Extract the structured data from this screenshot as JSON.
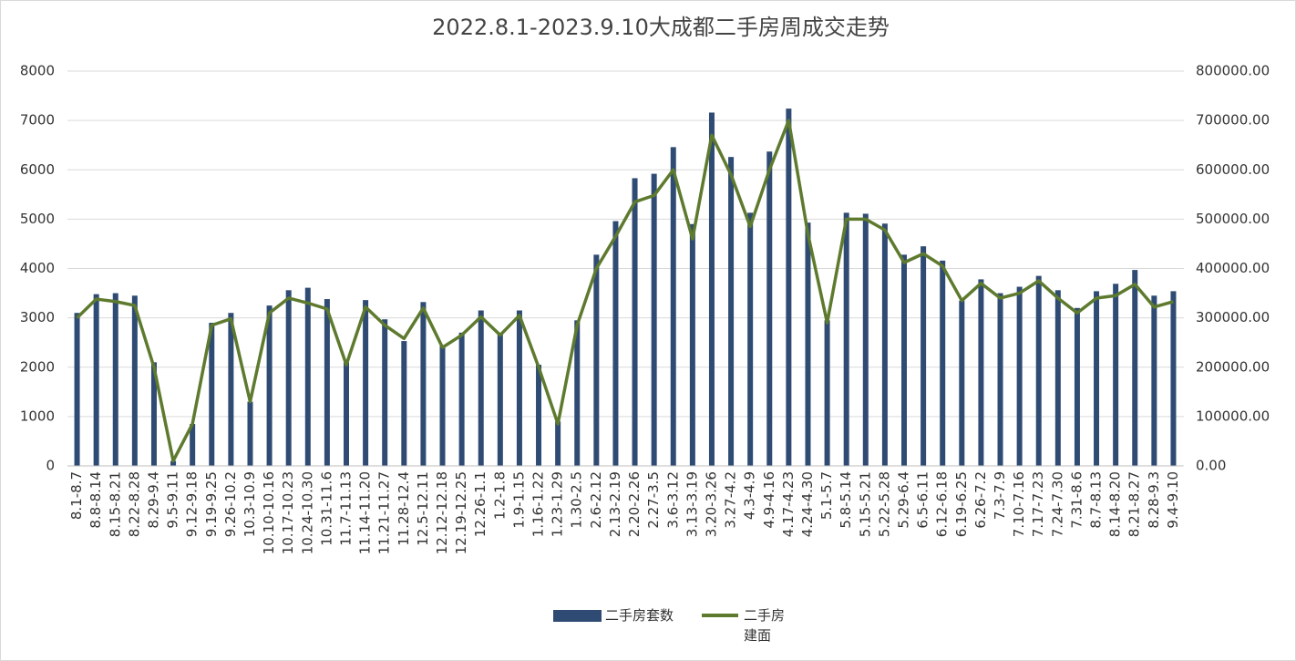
{
  "chart_data": {
    "type": "bar",
    "title": "2022.8.1-2023.9.10大成都二手房周成交走势",
    "categories": [
      "8.1-8.7",
      "8.8-8.14",
      "8.15-8.21",
      "8.22-8.28",
      "8.29-9.4",
      "9.5-9.11",
      "9.12-9.18",
      "9.19-9.25",
      "9.26-10.2",
      "10.3-10.9",
      "10.10-10.16",
      "10.17-10.23",
      "10.24-10.30",
      "10.31-11.6",
      "11.7-11.13",
      "11.14-11.20",
      "11.21-11.27",
      "11.28-12.4",
      "12.5-12.11",
      "12.12-12.18",
      "12.19-12.25",
      "12.26-1.1",
      "1.2-1.8",
      "1.9-1.15",
      "1.16-1.22",
      "1.23-1.29",
      "1.30-2.5",
      "2.6-2.12",
      "2.13-2.19",
      "2.20-2.26",
      "2.27-3.5",
      "3.6-3.12",
      "3.13-3.19",
      "3.20-3.26",
      "3.27-4.2",
      "4.3-4.9",
      "4.9-4.16",
      "4.17-4.23",
      "4.24-4.30",
      "5.1-5.7",
      "5.8-5.14",
      "5.15-5.21",
      "5.22-5.28",
      "5.29-6.4",
      "6.5-6.11",
      "6.12-6.18",
      "6.19-6.25",
      "6.26-7.2",
      "7.3-7.9",
      "7.10-7.16",
      "7.17-7.23",
      "7.24-7.30",
      "7.31-8.6",
      "8.7-8.13",
      "8.14-8.20",
      "8.21-8.27",
      "8.28-9.3",
      "9.4-9.10"
    ],
    "series": [
      {
        "name": "二手房套数",
        "type": "bar",
        "color": "#2f4b73",
        "values": [
          3100,
          3480,
          3500,
          3450,
          2100,
          100,
          850,
          2900,
          3100,
          1300,
          3250,
          3560,
          3610,
          3380,
          2100,
          3360,
          2970,
          2530,
          3320,
          2450,
          2700,
          3150,
          2700,
          3150,
          2050,
          900,
          2950,
          4280,
          4960,
          5830,
          5920,
          6460,
          4900,
          7160,
          6260,
          5130,
          6370,
          7240,
          4930,
          2950,
          5130,
          5110,
          4910,
          4280,
          4450,
          4160,
          3350,
          3780,
          3500,
          3630,
          3850,
          3560,
          3200,
          3540,
          3690,
          3970,
          3450,
          3540
        ]
      },
      {
        "name": "二手房建面",
        "type": "line",
        "axis": "y2",
        "color": "#5e7a2e",
        "values": [
          300000,
          338000,
          333000,
          325000,
          200000,
          10000,
          85000,
          285000,
          298000,
          130000,
          310000,
          340000,
          330000,
          318000,
          205000,
          322000,
          285000,
          258000,
          320000,
          240000,
          265000,
          302000,
          265000,
          305000,
          200000,
          85000,
          285000,
          400000,
          465000,
          535000,
          548000,
          600000,
          460000,
          670000,
          590000,
          485000,
          600000,
          700000,
          470000,
          290000,
          500000,
          500000,
          478000,
          412000,
          430000,
          405000,
          335000,
          370000,
          340000,
          350000,
          375000,
          340000,
          310000,
          340000,
          345000,
          368000,
          322000,
          333000
        ]
      }
    ],
    "ylim": [
      0,
      8000
    ],
    "yticks": [
      0,
      1000,
      2000,
      3000,
      4000,
      5000,
      6000,
      7000,
      8000
    ],
    "y2lim": [
      0,
      800000
    ],
    "y2ticks": [
      {
        "value": 0,
        "label": "0.00"
      },
      {
        "value": 100000,
        "label": "100000.00"
      },
      {
        "value": 200000,
        "label": "200000.00"
      },
      {
        "value": 300000,
        "label": "300000.00"
      },
      {
        "value": 400000,
        "label": "400000.00"
      },
      {
        "value": 500000,
        "label": "500000.00"
      },
      {
        "value": 600000,
        "label": "600000.00"
      },
      {
        "value": 700000,
        "label": "700000.00"
      },
      {
        "value": 800000,
        "label": "800000.00"
      }
    ],
    "grid": true
  }
}
